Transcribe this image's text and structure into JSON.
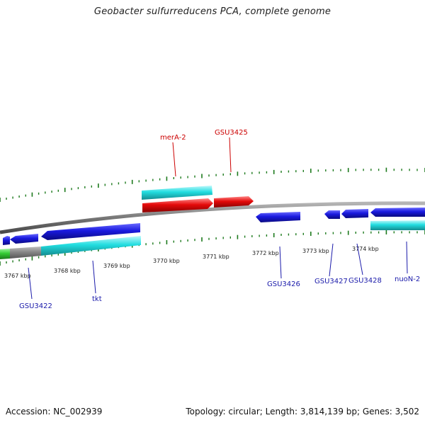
{
  "title": "Geobacter sulfurreducens PCA, complete genome",
  "footer": {
    "accession": "Accession: NC_002939",
    "summary": "Topology: circular; Length: 3,814,139 bp; Genes: 3,502"
  },
  "colors": {
    "background": "#ffffff",
    "backbone": "#777777",
    "gene_blue": "#1a1adf",
    "gene_cyan": "#22dde0",
    "gene_red": "#e40a0a",
    "gene_green": "#33cc33",
    "gene_grey": "#888888",
    "tick_green": "#1d7a1d",
    "label_blue": "#1a1aaa",
    "label_red": "#cc0000"
  },
  "scale": {
    "unit": "kbp",
    "labels": [
      "3767 kbp",
      "3768 kbp",
      "3769 kbp",
      "3770 kbp",
      "3771 kbp",
      "3772 kbp",
      "3773 kbp",
      "3774 kbp"
    ]
  },
  "genes": [
    {
      "name": "GSU3422",
      "color": "blue"
    },
    {
      "name": "tkt",
      "color": "blue"
    },
    {
      "name": "merA-2",
      "color": "red"
    },
    {
      "name": "GSU3425",
      "color": "red"
    },
    {
      "name": "GSU3426",
      "color": "blue"
    },
    {
      "name": "GSU3427",
      "color": "blue"
    },
    {
      "name": "GSU3428",
      "color": "blue"
    },
    {
      "name": "nuoN-2",
      "color": "blue"
    }
  ]
}
